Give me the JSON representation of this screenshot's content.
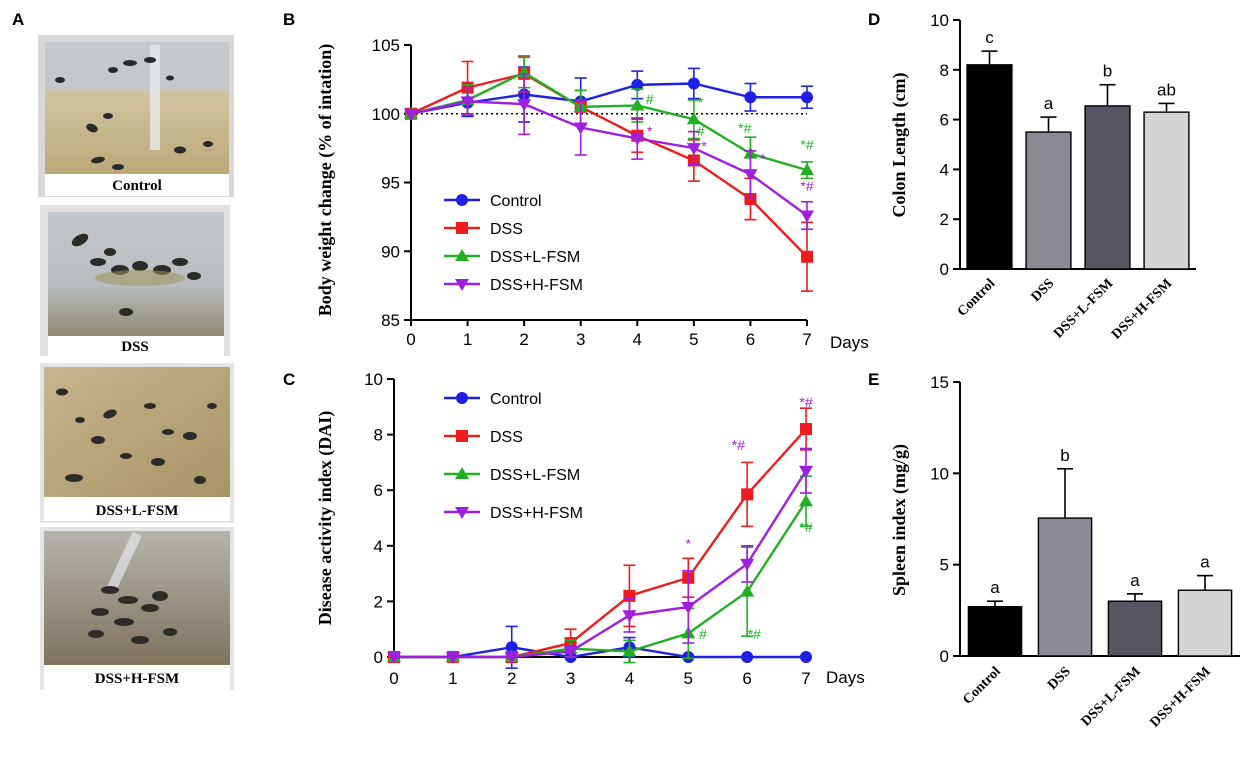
{
  "panel_letters": [
    "A",
    "B",
    "C",
    "D",
    "E"
  ],
  "photos": {
    "captions": [
      "Control",
      "DSS",
      "DSS+L-FSM",
      "DSS+H-FSM"
    ]
  },
  "colors": {
    "control": "#1f1fe6",
    "dss": "#ee1c1c",
    "lfsm": "#22b022",
    "hfsm": "#a01ee0",
    "bar_control": "#000000",
    "bar_dss": "#8a8a94",
    "bar_lfsm": "#565660",
    "bar_hfsm": "#d4d4d4"
  },
  "chart_data": [
    {
      "panel": "B",
      "type": "line",
      "xlabel": "Days",
      "ylabel": "Body  weight  change (% of intation)",
      "x": [
        0,
        1,
        2,
        3,
        4,
        5,
        6,
        7
      ],
      "xlim": [
        0,
        7
      ],
      "ylim": [
        85,
        105
      ],
      "yticks": [
        85,
        90,
        95,
        100,
        105
      ],
      "reference_line": 100,
      "series": [
        {
          "name": "Control",
          "key": "control",
          "marker": "circle",
          "values": [
            100,
            100.8,
            101.4,
            100.9,
            102.1,
            102.2,
            101.2,
            101.2
          ],
          "errors": [
            0,
            1.0,
            2.0,
            1.7,
            1.0,
            1.1,
            1.0,
            0.8
          ]
        },
        {
          "name": "DSS",
          "key": "dss",
          "marker": "square",
          "values": [
            100,
            101.9,
            102.9,
            100.5,
            98.4,
            96.6,
            93.8,
            89.6
          ],
          "errors": [
            0,
            1.9,
            1.3,
            1.2,
            1.2,
            1.5,
            1.5,
            2.5
          ]
        },
        {
          "name": "DSS+L-FSM",
          "key": "lfsm",
          "marker": "triangle-up",
          "values": [
            100,
            101.0,
            103.0,
            100.5,
            100.6,
            99.6,
            97.1,
            95.9
          ],
          "errors": [
            0,
            1.1,
            1.1,
            1.2,
            1.2,
            1.4,
            1.2,
            0.6
          ]
        },
        {
          "name": "DSS+H-FSM",
          "key": "hfsm",
          "marker": "triangle-down",
          "values": [
            100,
            100.9,
            100.7,
            99.0,
            98.2,
            97.5,
            95.6,
            92.6
          ],
          "errors": [
            0,
            1.0,
            2.2,
            2.0,
            1.5,
            1.2,
            1.7,
            1.0
          ]
        }
      ],
      "annotations": [
        {
          "x": 4.22,
          "y": 98.4,
          "text": "*",
          "key": "hfsm"
        },
        {
          "x": 4.22,
          "y": 100.7,
          "text": "#",
          "key": "lfsm"
        },
        {
          "x": 5.12,
          "y": 100.5,
          "text": "*",
          "key": "lfsm"
        },
        {
          "x": 5.12,
          "y": 98.4,
          "text": "#",
          "key": "lfsm"
        },
        {
          "x": 5.18,
          "y": 97.3,
          "text": "*",
          "key": "hfsm"
        },
        {
          "x": 5.9,
          "y": 98.6,
          "text": "*#",
          "key": "lfsm"
        },
        {
          "x": 6.22,
          "y": 96.4,
          "text": "*",
          "key": "hfsm"
        },
        {
          "x": 7.0,
          "y": 97.4,
          "text": "*#",
          "key": "lfsm"
        },
        {
          "x": 7.0,
          "y": 94.4,
          "text": "*#",
          "key": "hfsm"
        }
      ],
      "legend": {
        "placement": "center-left"
      }
    },
    {
      "panel": "C",
      "type": "line",
      "xlabel": "Days",
      "ylabel": "Disease activity index (DAI)",
      "x": [
        0,
        1,
        2,
        3,
        4,
        5,
        6,
        7
      ],
      "xlim": [
        0,
        7
      ],
      "ylim": [
        0,
        10
      ],
      "yticks": [
        0,
        2,
        4,
        6,
        8,
        10
      ],
      "series": [
        {
          "name": "Control",
          "key": "control",
          "marker": "circle",
          "values": [
            0,
            0,
            0.35,
            0,
            0.35,
            0,
            0,
            0
          ],
          "errors": [
            0,
            0,
            0.75,
            0,
            0.35,
            0,
            0,
            0
          ]
        },
        {
          "name": "DSS",
          "key": "dss",
          "marker": "square",
          "values": [
            0,
            0,
            0,
            0.5,
            2.2,
            2.85,
            5.85,
            8.2
          ],
          "errors": [
            0,
            0,
            0,
            0.5,
            1.1,
            0.7,
            1.15,
            0.75
          ]
        },
        {
          "name": "DSS+L-FSM",
          "key": "lfsm",
          "marker": "triangle-up",
          "values": [
            0,
            0,
            0,
            0.3,
            0.2,
            0.85,
            2.35,
            5.6
          ],
          "errors": [
            0,
            0,
            0,
            0.3,
            0.4,
            0.9,
            1.6,
            0.9
          ]
        },
        {
          "name": "DSS+H-FSM",
          "key": "hfsm",
          "marker": "triangle-down",
          "values": [
            0,
            0,
            0,
            0.2,
            1.5,
            1.8,
            3.35,
            6.7
          ],
          "errors": [
            0,
            0,
            0,
            0.2,
            0.6,
            1.3,
            0.65,
            0.8
          ]
        }
      ],
      "annotations": [
        {
          "x": 5.0,
          "y": 3.9,
          "text": "*",
          "key": "hfsm"
        },
        {
          "x": 5.25,
          "y": 0.65,
          "text": "#",
          "key": "lfsm"
        },
        {
          "x": 5.85,
          "y": 7.45,
          "text": "*#",
          "key": "hfsm"
        },
        {
          "x": 6.12,
          "y": 0.65,
          "text": "*#",
          "key": "lfsm"
        },
        {
          "x": 7.0,
          "y": 9.0,
          "text": "*#",
          "key": "hfsm"
        },
        {
          "x": 7.0,
          "y": 4.5,
          "text": "*#",
          "key": "lfsm"
        }
      ],
      "legend": {
        "placement": "top-left"
      }
    },
    {
      "panel": "D",
      "type": "bar",
      "ylabel": "Colon  Length (cm)",
      "categories": [
        "Control",
        "DSS",
        "DSS+L-FSM",
        "DSS+H-FSM"
      ],
      "values": [
        8.2,
        5.5,
        6.55,
        6.3
      ],
      "errors": [
        0.55,
        0.6,
        0.85,
        0.35
      ],
      "labels": [
        "c",
        "a",
        "b",
        "ab"
      ],
      "color_keys": [
        "bar_control",
        "bar_dss",
        "bar_lfsm",
        "bar_hfsm"
      ],
      "ylim": [
        0,
        10
      ],
      "yticks": [
        0,
        2,
        4,
        6,
        8,
        10
      ]
    },
    {
      "panel": "E",
      "type": "bar",
      "ylabel": "Spleen index (mg/g)",
      "categories": [
        "Control",
        "DSS",
        "DSS+L-FSM",
        "DSS+H-FSM"
      ],
      "values": [
        2.7,
        7.55,
        3.0,
        3.6
      ],
      "errors": [
        0.3,
        2.7,
        0.4,
        0.8
      ],
      "labels": [
        "a",
        "b",
        "a",
        "a"
      ],
      "color_keys": [
        "bar_control",
        "bar_dss",
        "bar_lfsm",
        "bar_hfsm"
      ],
      "ylim": [
        0,
        15
      ],
      "yticks": [
        0,
        5,
        10,
        15
      ]
    }
  ]
}
